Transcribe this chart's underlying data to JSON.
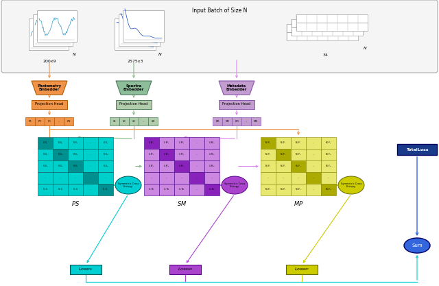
{
  "bg_color": "#ffffff",
  "colors": {
    "ph_orange": "#F0944A",
    "ph_orange_edge": "#B05A00",
    "sp_green": "#8EBD9A",
    "sp_green_edge": "#4a7a5a",
    "mt_purple": "#C49DD0",
    "mt_purple_edge": "#8855AA",
    "proj_orange": "#F0944A",
    "proj_green": "#B0CCAA",
    "proj_purple": "#C49DD0",
    "vec_orange": "#F0944A",
    "vec_green": "#B0CCAA",
    "vec_purple": "#C49DD0",
    "ps_teal": "#00D0CC",
    "ps_dark": "#009090",
    "sm_light": "#CC88E0",
    "sm_dark": "#8822BB",
    "mp_light": "#E8E870",
    "mp_dark": "#AAAA00",
    "sce_teal": "#00CED1",
    "sce_purple": "#AA44CC",
    "sce_yellow": "#CCCC00",
    "loss_teal": "#00CED1",
    "loss_purple": "#AA44CC",
    "loss_yellow": "#CCCC00",
    "total_blue": "#1A3A8A",
    "sum_blue": "#3366DD",
    "arr_orange": "#F0944A",
    "arr_green": "#88BB88",
    "arr_purple": "#DD88EE",
    "arr_teal": "#00CED1",
    "arr_yellow": "#CCCC00",
    "arr_blue": "#3366DD"
  },
  "embedder_labels": [
    "Photometry\nEmbedder",
    "Spectra\nEmbedder",
    "Metadata\nEmbedder"
  ],
  "proj_label": "Projection Head",
  "vec_labels_p": [
    "P_1",
    "P_2",
    "P_3",
    "..",
    "P_N"
  ],
  "vec_labels_s": [
    "S_1",
    "S_2",
    "S_3",
    "..",
    "S_N"
  ],
  "vec_labels_m": [
    "M_1",
    "M_2",
    "M_3",
    "..",
    "M_N"
  ],
  "ps_row0": [
    "P_1{\\cdot}S_1",
    "P_1{\\cdot}S_2",
    "P_1{\\cdot}S_3",
    "..",
    "P_1{\\cdot}S_N"
  ],
  "ps_row1": [
    "P_2{\\cdot}S_1",
    "P_2{\\cdot}S_2",
    "P_2{\\cdot}S_3",
    "..",
    "P_2{\\cdot}S_N"
  ],
  "ps_row2": [
    "P_3{\\cdot}S_1",
    "P_3{\\cdot}S_2",
    "P_3{\\cdot}S_3",
    "..",
    "P_3{\\cdot}S_N"
  ],
  "ps_row3": [
    "..",
    "..",
    "..",
    "..",
    ".."
  ],
  "ps_row4": [
    "P_N{\\cdot}S_1",
    "P_N{\\cdot}S_2",
    "P_N{\\cdot}S_3",
    "..",
    "P_N{\\cdot}S_N"
  ],
  "sm_row0": [
    "S_1{\\cdot}M_1",
    "S_1{\\cdot}M_2",
    "S_1{\\cdot}M_3",
    "..",
    "S_1{\\cdot}M_N"
  ],
  "sm_row1": [
    "S_2{\\cdot}M_1",
    "S_2{\\cdot}M_2",
    "S_2{\\cdot}M_3",
    "..",
    "S_2{\\cdot}M_N"
  ],
  "sm_row2": [
    "S_3{\\cdot}M_1",
    "S_3{\\cdot}M_2",
    "S_3{\\cdot}M_3",
    "..",
    "S_3{\\cdot}M_N"
  ],
  "sm_row3": [
    "..",
    "..",
    "..",
    "..",
    ".."
  ],
  "sm_row4": [
    "S_N{\\cdot}M_1",
    "S_N{\\cdot}M_2",
    "S_N{\\cdot}M_3",
    "..",
    "S_N{\\cdot}M_N"
  ],
  "mp_row0": [
    "M_1{\\cdot}P_1",
    "M_1{\\cdot}P_2",
    "M_1{\\cdot}P_3",
    "..",
    "M_1{\\cdot}P_N"
  ],
  "mp_row1": [
    "M_2{\\cdot}P_1",
    "M_2{\\cdot}P_2",
    "M_2{\\cdot}P_3",
    "..",
    "M_2{\\cdot}P_N"
  ],
  "mp_row2": [
    "M_3{\\cdot}P_1",
    "M_3{\\cdot}P_2",
    "M_3{\\cdot}P_3",
    "..",
    "M_3{\\cdot}P_N"
  ],
  "mp_row3": [
    "..",
    "..",
    "..",
    "..",
    ".."
  ],
  "mp_row4": [
    "M_N{\\cdot}P_1",
    "M_N{\\cdot}P_2",
    "M_N{\\cdot}P_3",
    "..",
    "M_N{\\cdot}P_N"
  ],
  "mat_names": [
    "PS",
    "SM",
    "MP"
  ],
  "sce_label": "Symmetric Cross\nEntropy",
  "loss_labels": [
    "Loss$_{PS}$",
    "Loss$_{SM}$",
    "Loss$_{MP}$"
  ],
  "total_loss_label": "TotalLoss",
  "sum_label": "Sum",
  "input_batch_label": "Input Batch of Size N",
  "data_labels": [
    "200x9",
    "2575x3",
    "34"
  ]
}
